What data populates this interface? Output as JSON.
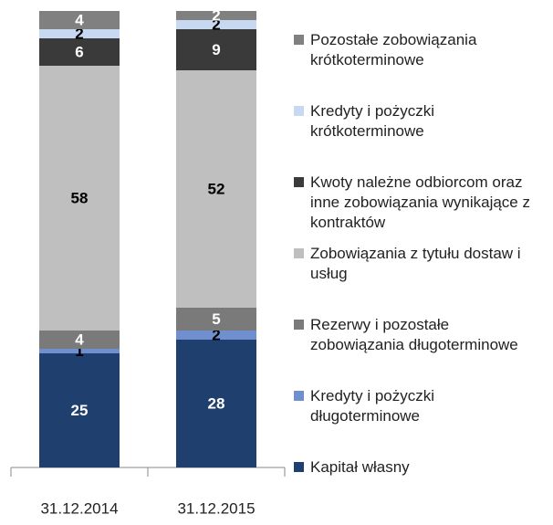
{
  "chart_data": {
    "type": "stacked_bar",
    "categories": [
      "31.12.2014",
      "31.12.2015"
    ],
    "ylim": [
      0,
      100
    ],
    "series": [
      {
        "name": "Kapitał własny",
        "color": "#1f3f6e",
        "values": [
          25,
          28
        ]
      },
      {
        "name": "Kredyty i pożyczki długoterminowe",
        "color": "#6f8fcf",
        "values": [
          1,
          2
        ]
      },
      {
        "name": "Rezerwy i pozostałe zobowiązania długoterminowe",
        "color": "#7a7a7a",
        "values": [
          4,
          5
        ]
      },
      {
        "name": "Zobowiązania z tytułu  dostaw i usług",
        "color": "#bfbfbf",
        "values": [
          58,
          52
        ]
      },
      {
        "name": "Kwoty należne odbiorcom oraz inne zobowiązania wynikające z kontraktów",
        "color": "#3a3a3a",
        "values": [
          6,
          9
        ]
      },
      {
        "name": "Kredyty i pożyczki krótkoterminowe",
        "color": "#c6d9f1",
        "values": [
          2,
          2
        ]
      },
      {
        "name": "Pozostałe zobowiązania krótkoterminowe",
        "color": "#808080",
        "values": [
          4,
          2
        ]
      }
    ]
  }
}
